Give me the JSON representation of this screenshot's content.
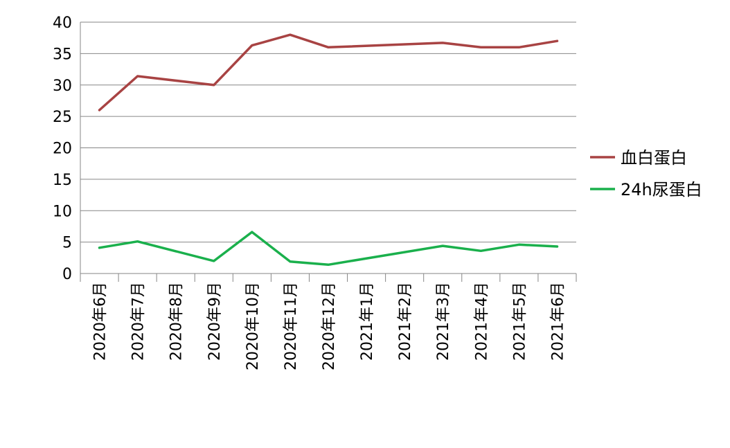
{
  "chart_data": {
    "type": "line",
    "title": "",
    "xlabel": "",
    "ylabel": "",
    "ylim": [
      0,
      40
    ],
    "y_ticks": [
      0,
      5,
      10,
      15,
      20,
      25,
      30,
      35,
      40
    ],
    "grid": true,
    "legend_position": "right",
    "categories": [
      "2020年6月",
      "2020年7月",
      "2020年8月",
      "2020年9月",
      "2020年10月",
      "2020年11月",
      "2020年12月",
      "2021年1月",
      "2021年2月",
      "2021年3月",
      "2021年4月",
      "2021年5月",
      "2021年6月"
    ],
    "series": [
      {
        "name": "血白蛋白",
        "color": "#a84343",
        "values": [
          26,
          31.4,
          null,
          30,
          36.3,
          38,
          36,
          null,
          null,
          36.7,
          36,
          36,
          37
        ]
      },
      {
        "name": "24h尿蛋白",
        "color": "#1ab04c",
        "values": [
          4.1,
          5.1,
          null,
          2,
          6.6,
          1.9,
          1.4,
          null,
          null,
          4.4,
          3.6,
          4.6,
          4.3
        ]
      }
    ]
  }
}
